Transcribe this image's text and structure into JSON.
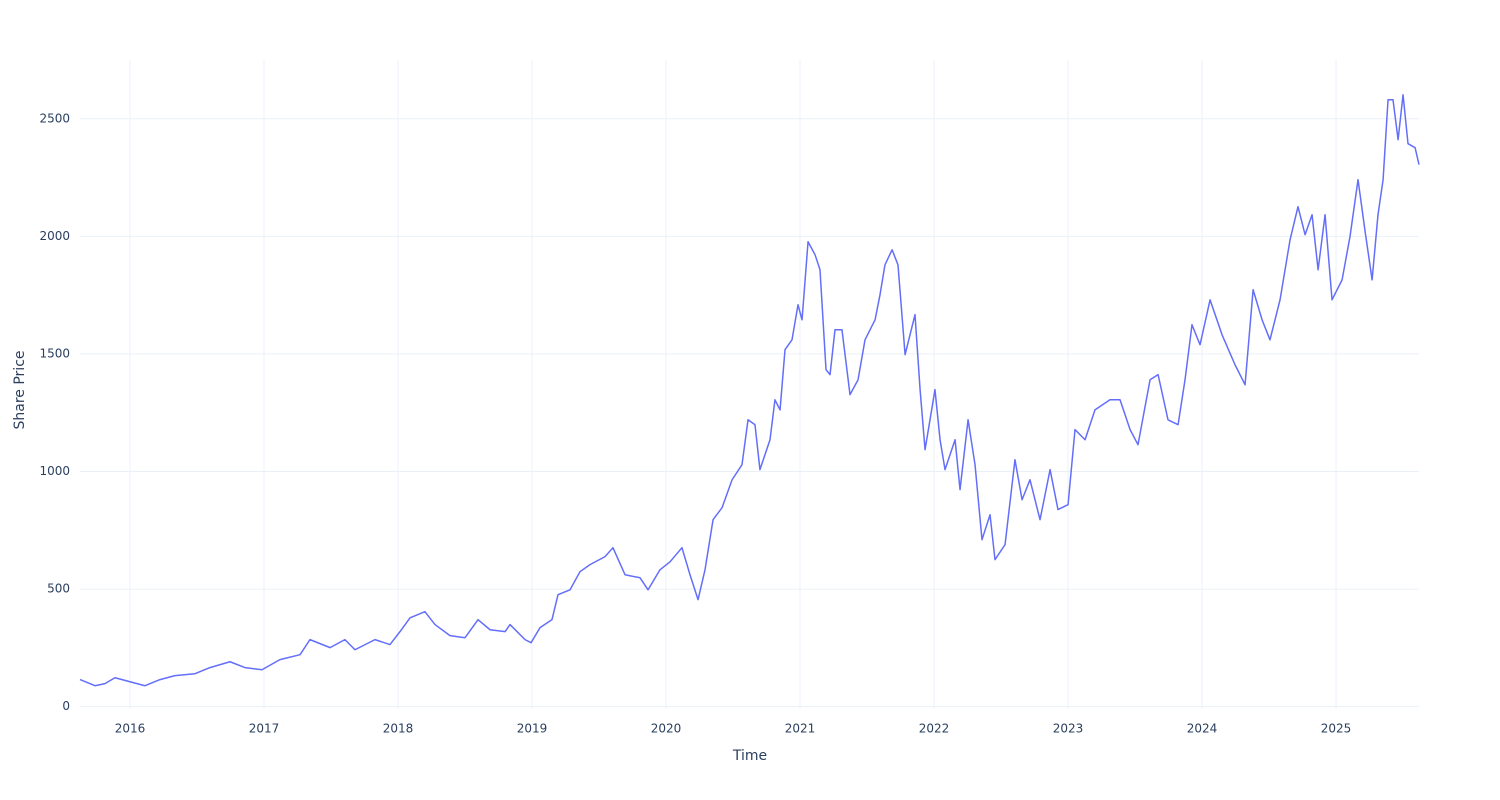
{
  "chart_data": {
    "type": "line",
    "x_label": "Time",
    "y_label": "Share Price",
    "color": "#636efa",
    "grid": true,
    "xlim": [
      2015.627,
      2025.619
    ],
    "ylim": [
      -10,
      2750
    ],
    "xticks": [
      2016,
      2017,
      2018,
      2019,
      2020,
      2021,
      2022,
      2023,
      2024,
      2025
    ],
    "yticks": [
      0,
      500,
      1000,
      1500,
      2000,
      2500
    ],
    "x": [
      2015.627,
      2015.739,
      2015.813,
      2015.888,
      2016.0,
      2016.112,
      2016.224,
      2016.336,
      2016.485,
      2016.597,
      2016.746,
      2016.858,
      2016.985,
      2017.119,
      2017.269,
      2017.343,
      2017.493,
      2017.604,
      2017.679,
      2017.828,
      2017.94,
      2018.015,
      2018.09,
      2018.201,
      2018.276,
      2018.388,
      2018.5,
      2018.597,
      2018.687,
      2018.799,
      2018.836,
      2018.948,
      2018.993,
      2019.06,
      2019.149,
      2019.194,
      2019.284,
      2019.358,
      2019.433,
      2019.545,
      2019.604,
      2019.694,
      2019.806,
      2019.866,
      2019.955,
      2020.03,
      2020.119,
      2020.179,
      2020.239,
      2020.291,
      2020.351,
      2020.418,
      2020.493,
      2020.567,
      2020.612,
      2020.664,
      2020.701,
      2020.776,
      2020.813,
      2020.851,
      2020.888,
      2020.94,
      2020.985,
      2021.015,
      2021.06,
      2021.112,
      2021.149,
      2021.194,
      2021.224,
      2021.261,
      2021.313,
      2021.373,
      2021.433,
      2021.485,
      2021.56,
      2021.597,
      2021.634,
      2021.687,
      2021.731,
      2021.784,
      2021.858,
      2021.896,
      2021.933,
      2021.97,
      2022.007,
      2022.045,
      2022.082,
      2022.157,
      2022.194,
      2022.254,
      2022.306,
      2022.358,
      2022.418,
      2022.455,
      2022.53,
      2022.604,
      2022.657,
      2022.716,
      2022.791,
      2022.866,
      2022.925,
      2023.0,
      2023.052,
      2023.127,
      2023.201,
      2023.313,
      2023.388,
      2023.463,
      2023.522,
      2023.612,
      2023.672,
      2023.746,
      2023.821,
      2023.873,
      2023.925,
      2023.985,
      2024.06,
      2024.149,
      2024.246,
      2024.321,
      2024.381,
      2024.448,
      2024.507,
      2024.582,
      2024.657,
      2024.716,
      2024.769,
      2024.821,
      2024.866,
      2024.918,
      2024.97,
      2025.045,
      2025.104,
      2025.164,
      2025.216,
      2025.269,
      2025.313,
      2025.351,
      2025.388,
      2025.425,
      2025.463,
      2025.5,
      2025.537,
      2025.59,
      2025.619
    ],
    "values": [
      115,
      89,
      98,
      123,
      106,
      89,
      115,
      132,
      140,
      166,
      191,
      166,
      157,
      200,
      221,
      285,
      251,
      285,
      242,
      285,
      264,
      319,
      378,
      404,
      349,
      302,
      293,
      370,
      327,
      319,
      349,
      285,
      272,
      336,
      370,
      476,
      497,
      574,
      604,
      638,
      676,
      561,
      548,
      497,
      582,
      616,
      676,
      561,
      455,
      582,
      795,
      846,
      965,
      1029,
      1220,
      1199,
      1008,
      1135,
      1305,
      1262,
      1518,
      1560,
      1709,
      1645,
      1977,
      1922,
      1858,
      1433,
      1412,
      1603,
      1603,
      1327,
      1390,
      1560,
      1645,
      1752,
      1879,
      1943,
      1879,
      1497,
      1667,
      1348,
      1093,
      1220,
      1348,
      1135,
      1008,
      1135,
      923,
      1220,
      1029,
      710,
      816,
      625,
      689,
      1050,
      880,
      965,
      795,
      1008,
      838,
      859,
      1178,
      1135,
      1262,
      1305,
      1305,
      1178,
      1114,
      1390,
      1412,
      1220,
      1199,
      1390,
      1624,
      1539,
      1730,
      1582,
      1454,
      1369,
      1773,
      1645,
      1560,
      1730,
      1986,
      2126,
      2007,
      2092,
      1858,
      2092,
      1730,
      1815,
      1999,
      2241,
      2024,
      1815,
      2092,
      2241,
      2581,
      2581,
      2411,
      2602,
      2394,
      2377,
      2305
    ]
  }
}
